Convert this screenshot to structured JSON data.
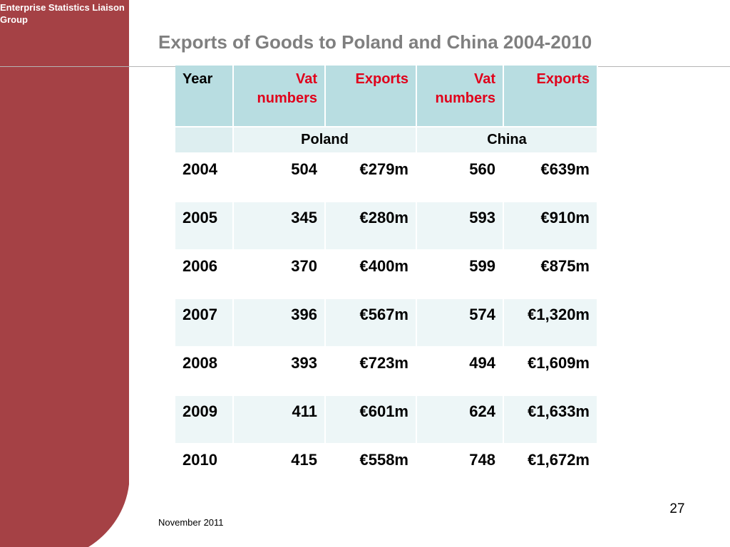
{
  "brand": {
    "org_name": "Enterprise Statistics Liaison Group",
    "accent_color": "#a54145"
  },
  "slide": {
    "title": "Exports of Goods to Poland and China 2004-2010",
    "page_number": "27",
    "footer_date": "November 2011"
  },
  "table": {
    "headers": [
      "Year",
      "Vat numbers",
      "Exports",
      "Vat numbers",
      "Exports"
    ],
    "groups": [
      "Poland",
      "China"
    ],
    "rows": [
      [
        "2004",
        "504",
        "€279m",
        "560",
        "€639m"
      ],
      [
        "2005",
        "345",
        "€280m",
        "593",
        "€910m"
      ],
      [
        "2006",
        "370",
        "€400m",
        "599",
        "€875m"
      ],
      [
        "2007",
        "396",
        "€567m",
        "574",
        "€1,320m"
      ],
      [
        "2008",
        "393",
        "€723m",
        "494",
        "€1,609m"
      ],
      [
        "2009",
        "411",
        "€601m",
        "624",
        "€1,633m"
      ],
      [
        "2010",
        "415",
        "€558m",
        "748",
        "€1,672m"
      ]
    ]
  }
}
